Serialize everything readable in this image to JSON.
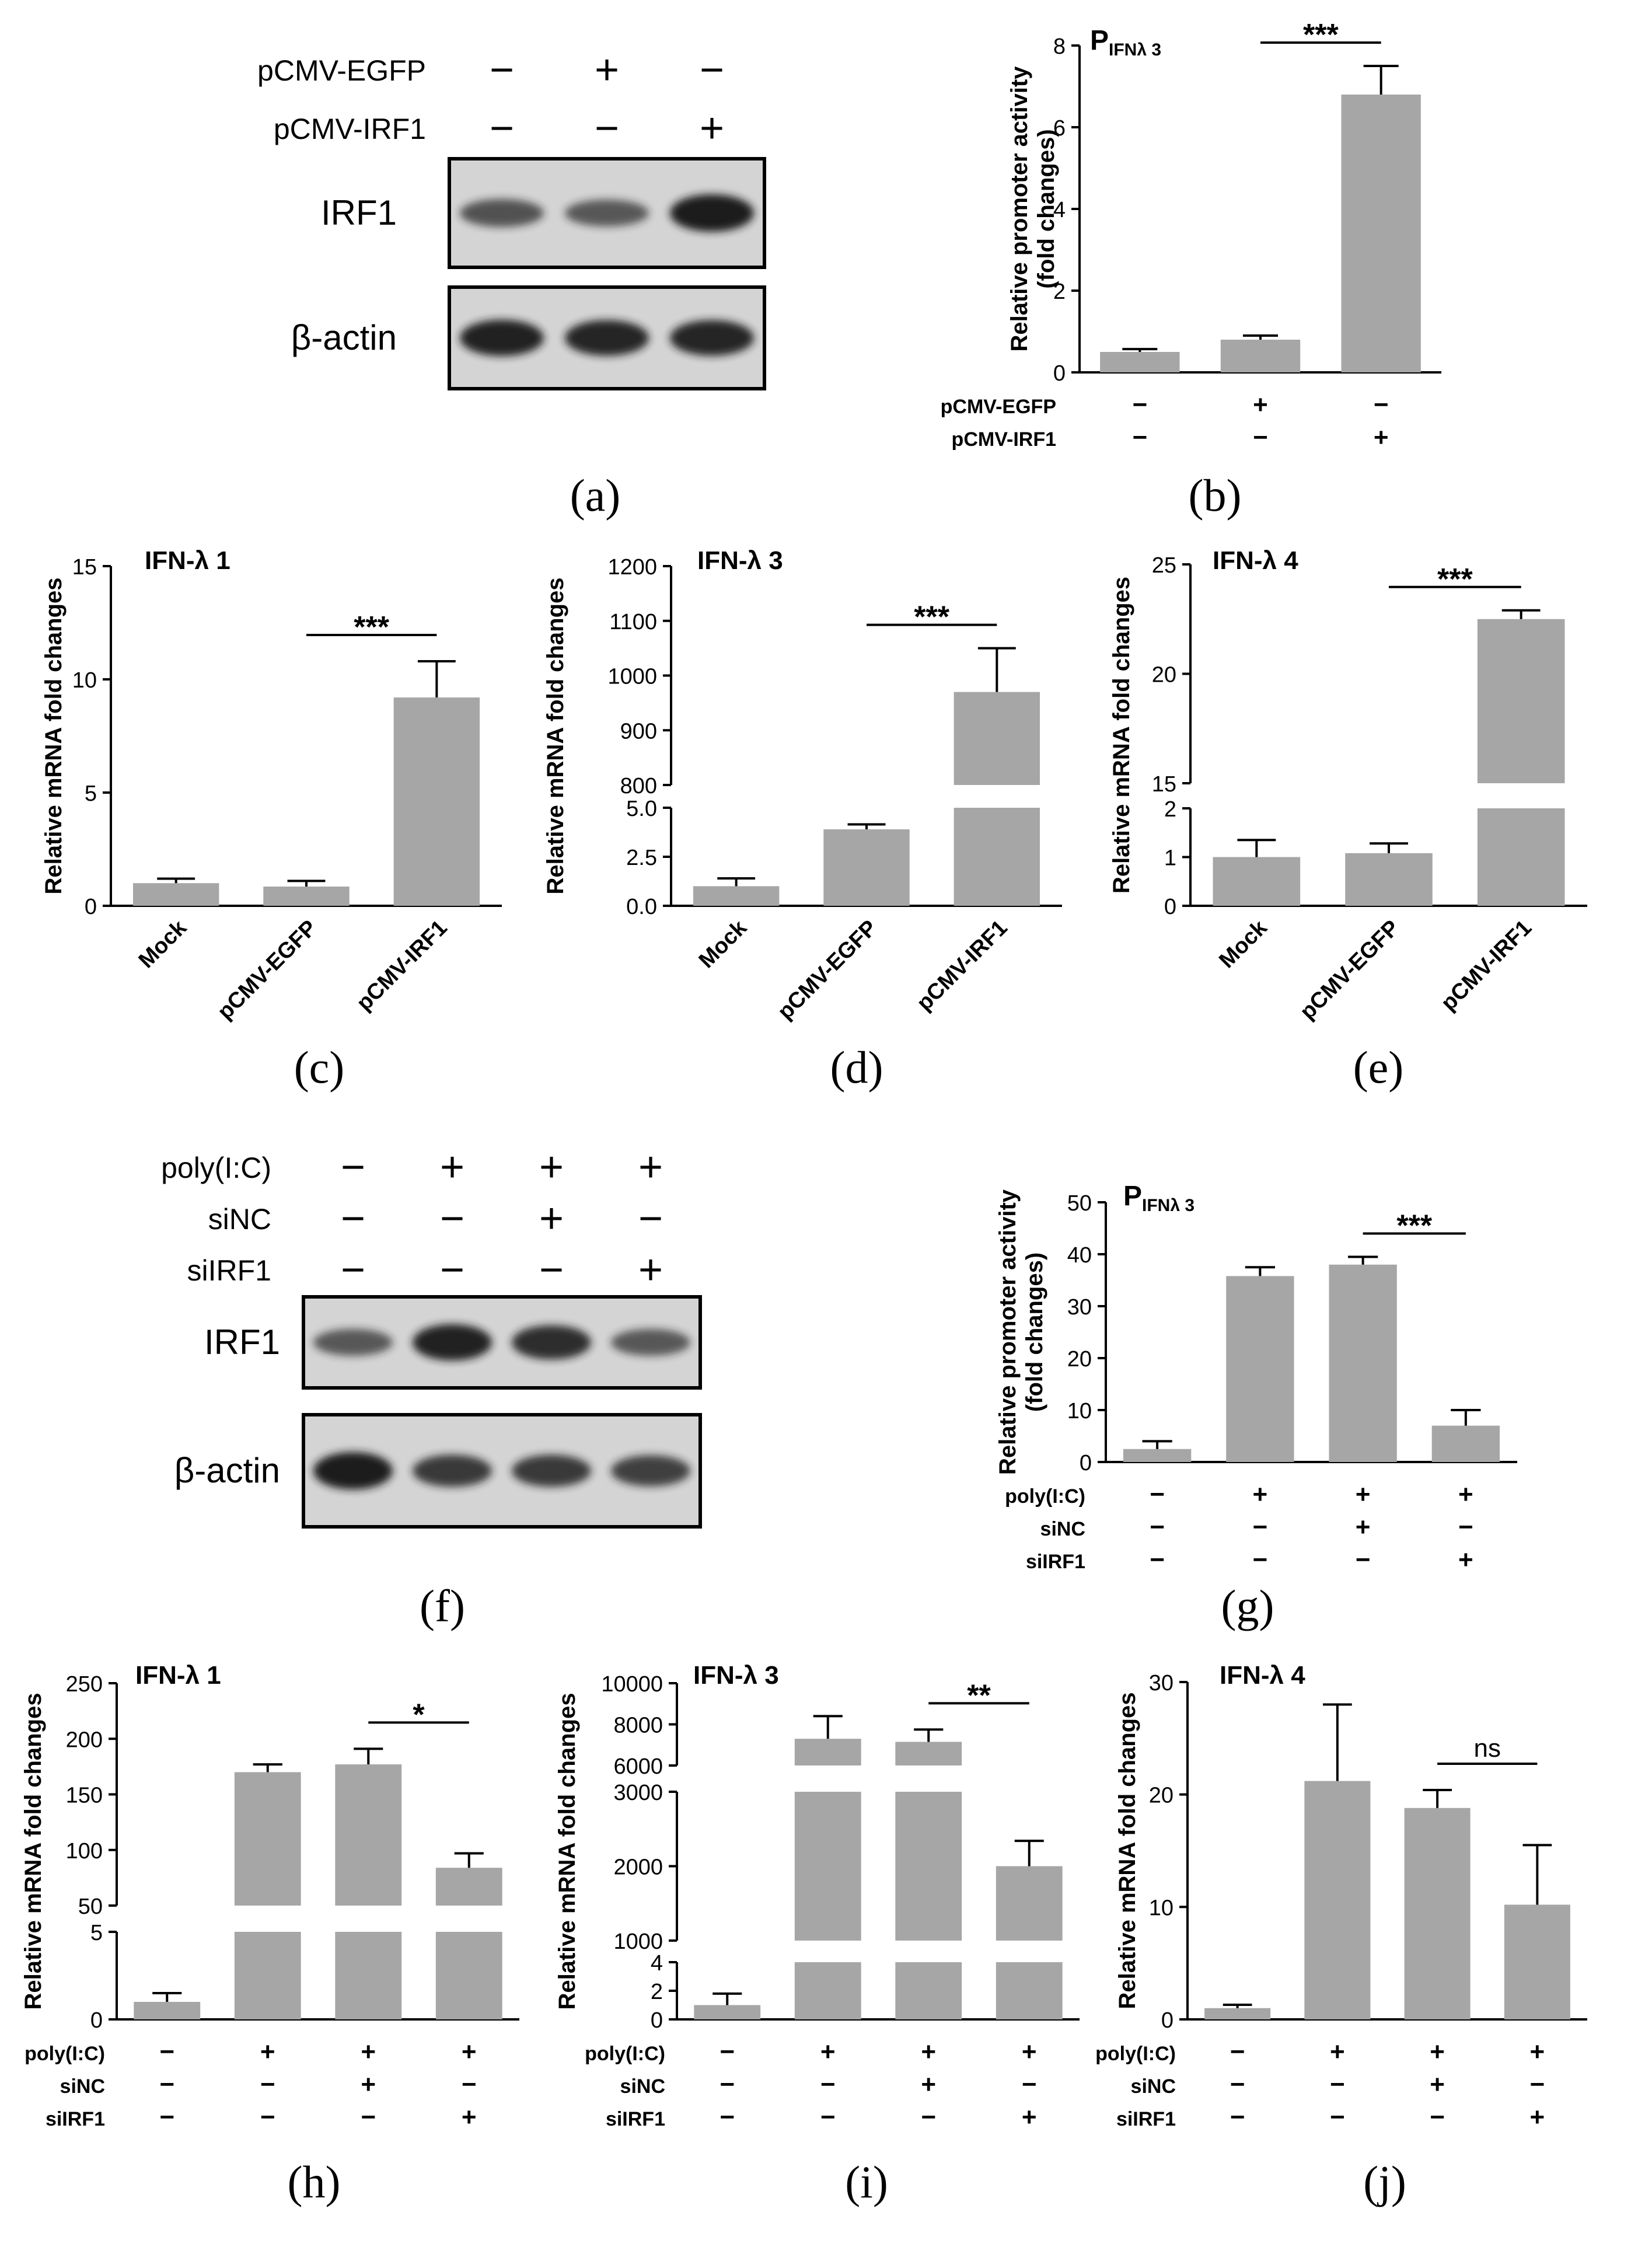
{
  "colors": {
    "bar": "#a6a6a6",
    "ink": "#000000",
    "band": "#1a1a1a",
    "blot_bg": "#d4d4d4"
  },
  "panel_a": {
    "letter": "(a)",
    "row_labels": [
      "pCMV-EGFP",
      "pCMV-IRF1"
    ],
    "signs": [
      [
        "−",
        "+",
        "−"
      ],
      [
        "−",
        "−",
        "+"
      ]
    ],
    "blot_labels": [
      "IRF1",
      "β-actin"
    ],
    "irf1_band_intensity": [
      0.55,
      0.5,
      1.0
    ],
    "actin_band_intensity": [
      0.95,
      0.92,
      0.92
    ]
  },
  "panel_f": {
    "letter": "(f)",
    "row_labels": [
      "poly(I:C)",
      "siNC",
      "siIRF1"
    ],
    "signs": [
      [
        "−",
        "+",
        "+",
        "+"
      ],
      [
        "−",
        "−",
        "+",
        "−"
      ],
      [
        "−",
        "−",
        "−",
        "+"
      ]
    ],
    "blot_labels": [
      "IRF1",
      "β-actin"
    ],
    "irf1_band_intensity": [
      0.5,
      0.95,
      0.85,
      0.5
    ],
    "actin_band_intensity": [
      1.0,
      0.75,
      0.75,
      0.7
    ]
  },
  "chart_data": [
    {
      "id": "b",
      "letter": "(b)",
      "type": "bar",
      "title": "P",
      "title_sub": "IFNλ 3",
      "ylabel": [
        "Relative promoter activity",
        "(fold changes)"
      ],
      "ylim": [
        0,
        8
      ],
      "yticks": [
        0,
        2,
        4,
        6,
        8
      ],
      "values": [
        0.5,
        0.8,
        6.8
      ],
      "errors": [
        0.07,
        0.1,
        0.7
      ],
      "sign_rows": [
        {
          "label": "pCMV-EGFP",
          "signs": [
            "−",
            "+",
            "−"
          ]
        },
        {
          "label": "pCMV-IRF1",
          "signs": [
            "−",
            "−",
            "+"
          ]
        }
      ],
      "significance": [
        {
          "from": 1,
          "to": 2,
          "label": "***"
        }
      ]
    },
    {
      "id": "c",
      "letter": "(c)",
      "type": "bar",
      "title": "IFN-λ 1",
      "ylabel": [
        "Relative mRNA fold changes"
      ],
      "ylim": [
        0,
        15
      ],
      "yticks": [
        0,
        5,
        10,
        15
      ],
      "categories": [
        "Mock",
        "pCMV-EGFP",
        "pCMV-IRF1"
      ],
      "values": [
        1.0,
        0.85,
        9.2
      ],
      "errors": [
        0.2,
        0.25,
        1.6
      ],
      "significance": [
        {
          "from": 1,
          "to": 2,
          "label": "***"
        }
      ]
    },
    {
      "id": "d",
      "letter": "(d)",
      "type": "bar",
      "title": "IFN-λ 3",
      "ylabel": [
        "Relative mRNA fold changes"
      ],
      "broken_axis": [
        {
          "range": [
            0,
            5
          ],
          "ticks": [
            "0.0",
            "2.5",
            "5.0"
          ]
        },
        {
          "range": [
            800,
            1200
          ],
          "ticks": [
            "800",
            "900",
            "1000",
            "1100",
            "1200"
          ]
        }
      ],
      "categories": [
        "Mock",
        "pCMV-EGFP",
        "pCMV-IRF1"
      ],
      "values": [
        1.0,
        3.9,
        970
      ],
      "errors": [
        0.4,
        0.25,
        80
      ],
      "significance": [
        {
          "from": 1,
          "to": 2,
          "label": "***"
        }
      ]
    },
    {
      "id": "e",
      "letter": "(e)",
      "type": "bar",
      "title": "IFN-λ 4",
      "ylabel": [
        "Relative mRNA fold changes"
      ],
      "broken_axis": [
        {
          "range": [
            0,
            2
          ],
          "ticks": [
            "0",
            "1",
            "2"
          ]
        },
        {
          "range": [
            15,
            25
          ],
          "ticks": [
            "15",
            "20",
            "25"
          ]
        }
      ],
      "categories": [
        "Mock",
        "pCMV-EGFP",
        "pCMV-IRF1"
      ],
      "values": [
        1.0,
        1.08,
        22.5
      ],
      "errors": [
        0.35,
        0.2,
        0.4
      ],
      "significance": [
        {
          "from": 1,
          "to": 2,
          "label": "***"
        }
      ]
    },
    {
      "id": "g",
      "letter": "(g)",
      "type": "bar",
      "title": "P",
      "title_sub": "IFNλ 3",
      "ylabel": [
        "Relative promoter activity",
        "(fold changes)"
      ],
      "ylim": [
        0,
        50
      ],
      "yticks": [
        0,
        10,
        20,
        30,
        40,
        50
      ],
      "values": [
        2.5,
        35.8,
        38.0,
        7.0
      ],
      "errors": [
        1.5,
        1.7,
        1.5,
        3.0
      ],
      "sign_rows": [
        {
          "label": "poly(I:C)",
          "signs": [
            "−",
            "+",
            "+",
            "+"
          ]
        },
        {
          "label": "siNC",
          "signs": [
            "−",
            "−",
            "+",
            "−"
          ]
        },
        {
          "label": "siIRF1",
          "signs": [
            "−",
            "−",
            "−",
            "+"
          ]
        }
      ],
      "significance": [
        {
          "from": 2,
          "to": 3,
          "label": "***"
        }
      ]
    },
    {
      "id": "h",
      "letter": "(h)",
      "type": "bar",
      "title": "IFN-λ 1",
      "ylabel": [
        "Relative mRNA fold changes"
      ],
      "broken_axis": [
        {
          "range": [
            0,
            5
          ],
          "ticks": [
            "0",
            "5"
          ]
        },
        {
          "range": [
            50,
            250
          ],
          "ticks": [
            "50",
            "100",
            "150",
            "200",
            "250"
          ]
        }
      ],
      "values": [
        1.0,
        170,
        177,
        84
      ],
      "errors": [
        0.5,
        7,
        14,
        13
      ],
      "sign_rows": [
        {
          "label": "poly(I:C)",
          "signs": [
            "−",
            "+",
            "+",
            "+"
          ]
        },
        {
          "label": "siNC",
          "signs": [
            "−",
            "−",
            "+",
            "−"
          ]
        },
        {
          "label": "siIRF1",
          "signs": [
            "−",
            "−",
            "−",
            "+"
          ]
        }
      ],
      "significance": [
        {
          "from": 2,
          "to": 3,
          "label": "*"
        }
      ]
    },
    {
      "id": "i",
      "letter": "(i)",
      "type": "bar",
      "title": "IFN-λ 3",
      "ylabel": [
        "Relative mRNA fold changes"
      ],
      "broken_axis": [
        {
          "range": [
            0,
            4
          ],
          "ticks": [
            "0",
            "2",
            "4"
          ]
        },
        {
          "range": [
            1000,
            3000
          ],
          "ticks": [
            "1000",
            "2000",
            "3000"
          ]
        },
        {
          "range": [
            6000,
            10000
          ],
          "ticks": [
            "6000",
            "8000",
            "10000"
          ]
        }
      ],
      "values": [
        1.0,
        7300,
        7150,
        2000
      ],
      "errors": [
        0.8,
        1100,
        600,
        340
      ],
      "sign_rows": [
        {
          "label": "poly(I:C)",
          "signs": [
            "−",
            "+",
            "+",
            "+"
          ]
        },
        {
          "label": "siNC",
          "signs": [
            "−",
            "−",
            "+",
            "−"
          ]
        },
        {
          "label": "siIRF1",
          "signs": [
            "−",
            "−",
            "−",
            "+"
          ]
        }
      ],
      "significance": [
        {
          "from": 2,
          "to": 3,
          "label": "**"
        }
      ]
    },
    {
      "id": "j",
      "letter": "(j)",
      "type": "bar",
      "title": "IFN-λ 4",
      "ylabel": [
        "Relative mRNA fold changes"
      ],
      "ylim": [
        0,
        30
      ],
      "yticks": [
        0,
        10,
        20,
        30
      ],
      "values": [
        1.0,
        21.2,
        18.8,
        10.2
      ],
      "errors": [
        0.3,
        6.8,
        1.6,
        5.3
      ],
      "sign_rows": [
        {
          "label": "poly(I:C)",
          "signs": [
            "−",
            "+",
            "+",
            "+"
          ]
        },
        {
          "label": "siNC",
          "signs": [
            "−",
            "−",
            "+",
            "−"
          ]
        },
        {
          "label": "siIRF1",
          "signs": [
            "−",
            "−",
            "−",
            "+"
          ]
        }
      ],
      "significance": [
        {
          "from": 2,
          "to": 3,
          "label": "ns"
        }
      ]
    }
  ]
}
